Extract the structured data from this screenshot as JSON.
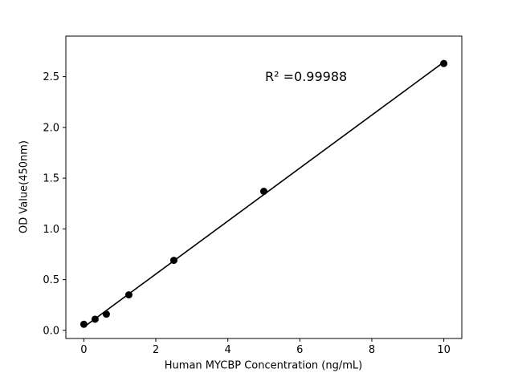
{
  "chart_data": {
    "type": "scatter",
    "title": "",
    "xlabel": "Human MYCBP Concentration (ng/mL)",
    "ylabel": "OD Value(450nm)",
    "annotation": "R² =0.99988",
    "x": [
      0,
      0.3125,
      0.625,
      1.25,
      2.5,
      5,
      10
    ],
    "y": [
      0.06,
      0.11,
      0.16,
      0.35,
      0.69,
      1.37,
      2.63
    ],
    "xlim": [
      -0.5,
      10.5
    ],
    "ylim": [
      -0.08,
      2.9
    ],
    "xticks": [
      0,
      2,
      4,
      6,
      8,
      10
    ],
    "xtick_labels": [
      "0",
      "2",
      "4",
      "6",
      "8",
      "10"
    ],
    "yticks": [
      0.0,
      0.5,
      1.0,
      1.5,
      2.0,
      2.5
    ],
    "ytick_labels": [
      "0.0",
      "0.5",
      "1.0",
      "1.5",
      "2.0",
      "2.5"
    ],
    "fit": "linear",
    "grid": false,
    "legend": null,
    "marker_color": "#000000",
    "line_color": "#000000",
    "background_color": "#ffffff"
  }
}
